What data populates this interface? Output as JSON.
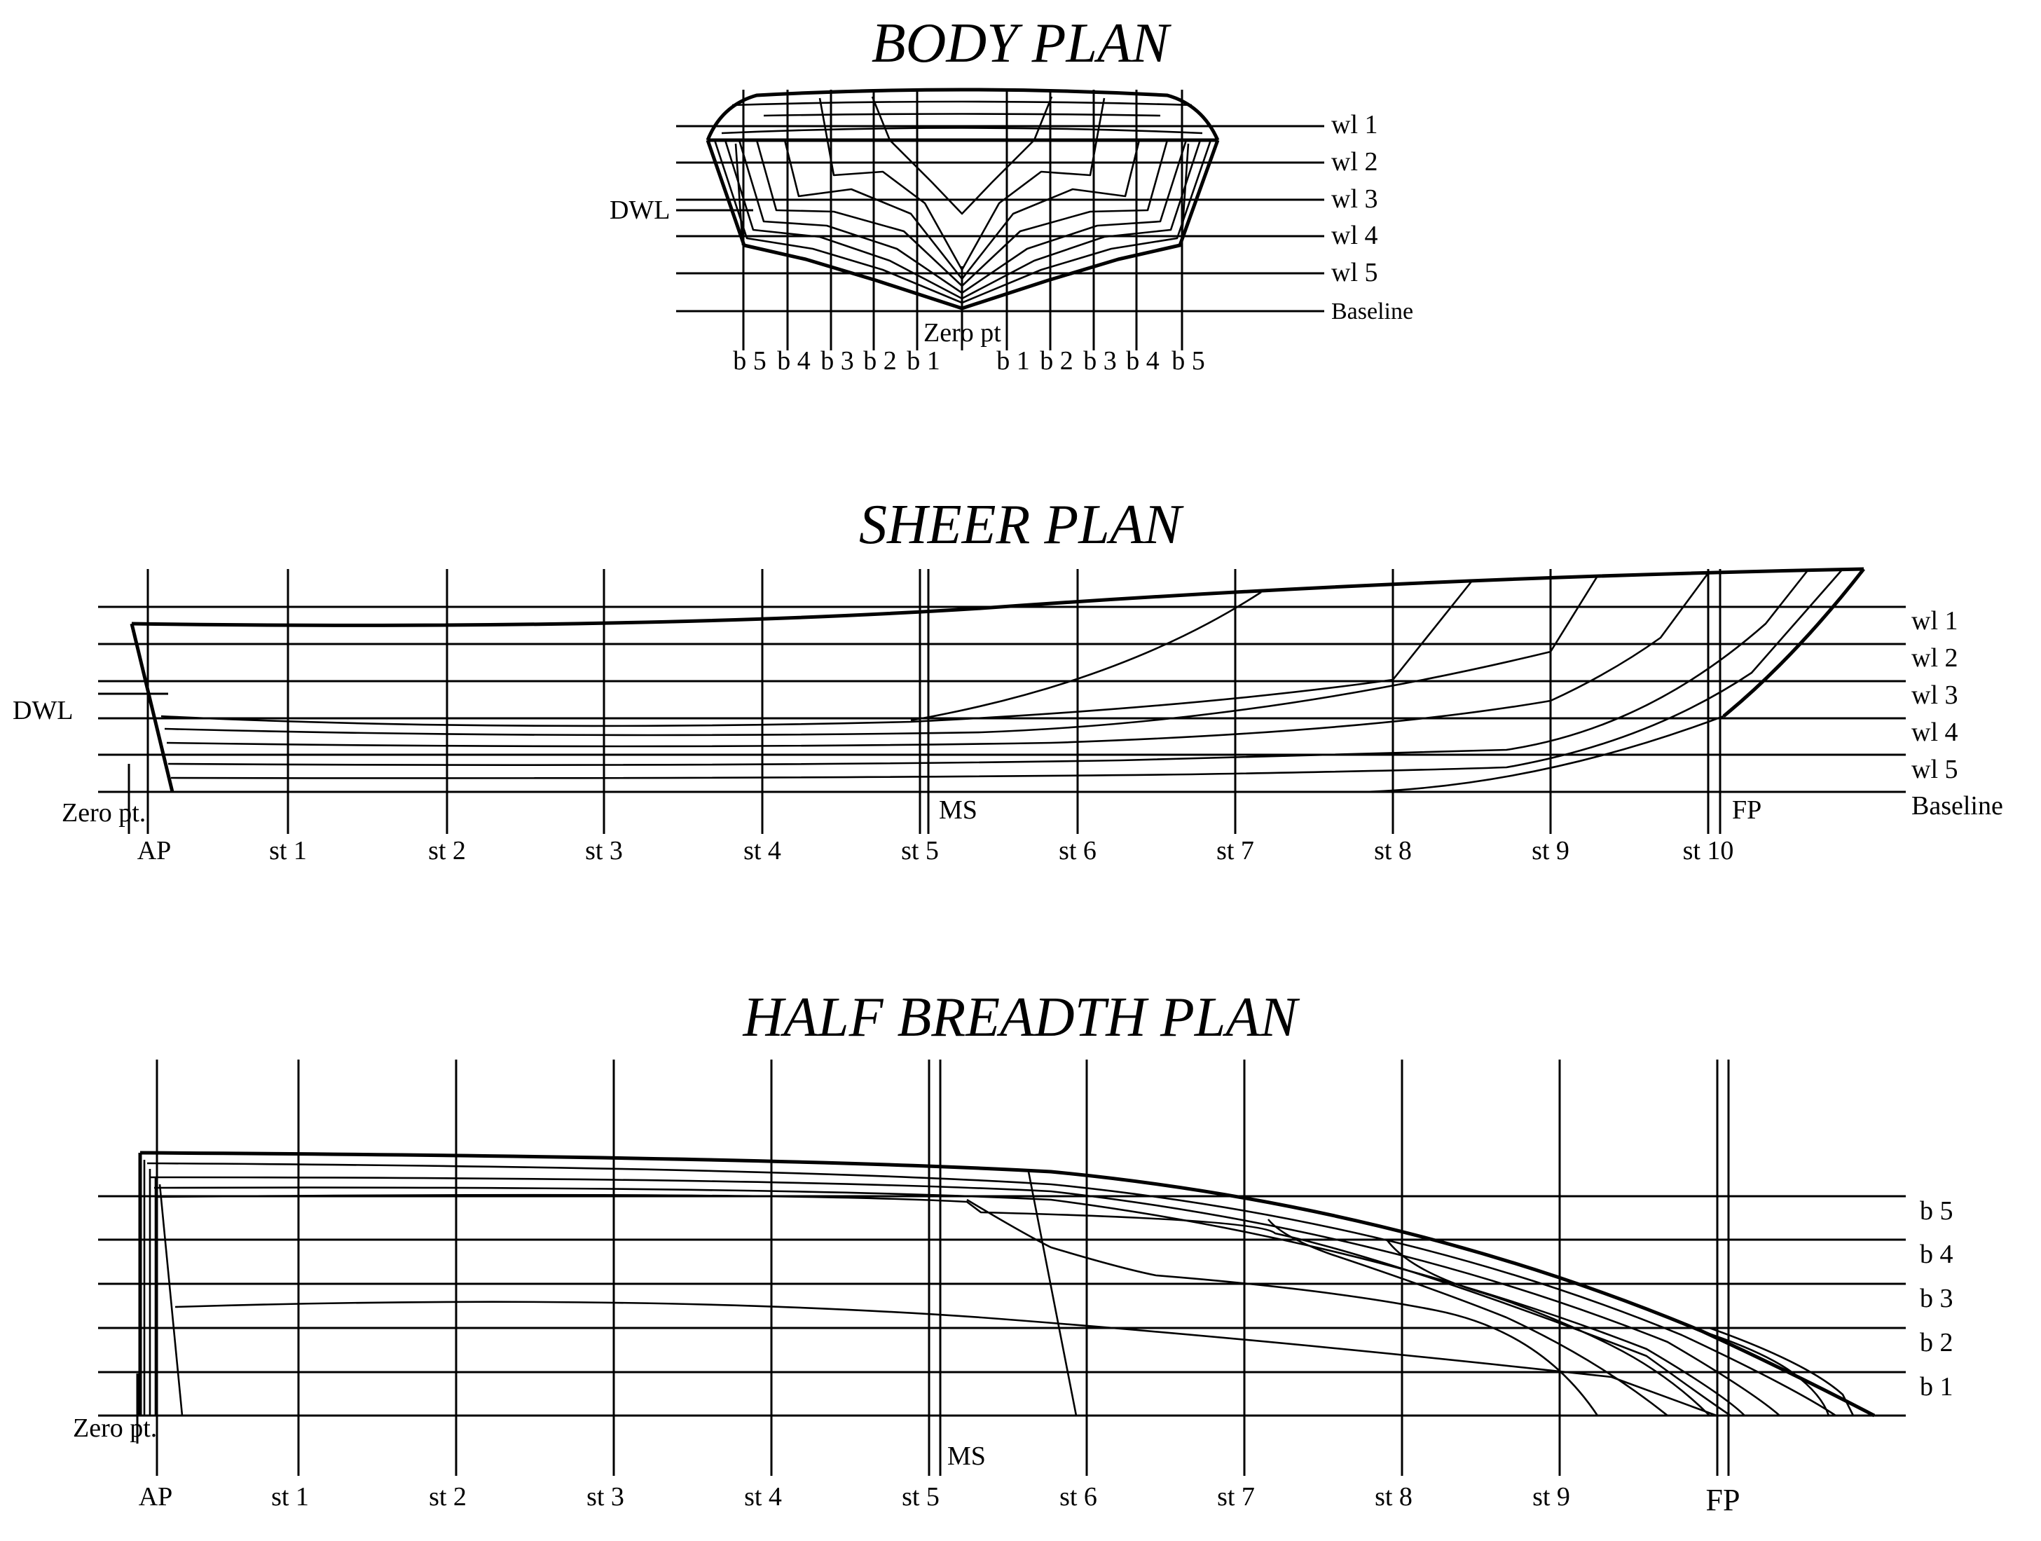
{
  "body_plan": {
    "title": "BODY PLAN",
    "waterlines": [
      "wl 1",
      "wl 2",
      "wl 3",
      "wl 4",
      "wl 5",
      "Baseline"
    ],
    "dwl": "DWL",
    "zero": "Zero pt",
    "buttocks_left": [
      "b 5",
      "b 4",
      "b 3",
      "b 2",
      "b 1"
    ],
    "buttocks_right": [
      "b 1",
      "b 2",
      "b 3",
      "b 4",
      "b 5"
    ]
  },
  "sheer_plan": {
    "title": "SHEER PLAN",
    "waterlines": [
      "wl 1",
      "wl 2",
      "wl 3",
      "wl 4",
      "wl 5",
      "Baseline"
    ],
    "dwl": "DWL",
    "zero": "Zero pt.",
    "ms": "MS",
    "fp": "FP",
    "stations": [
      "AP",
      "st 1",
      "st 2",
      "st 3",
      "st 4",
      "st 5",
      "st 6",
      "st 7",
      "st 8",
      "st 9",
      "st 10"
    ]
  },
  "half_breadth_plan": {
    "title": "HALF BREADTH PLAN",
    "buttocks": [
      "b 5",
      "b 4",
      "b 3",
      "b 2",
      "b 1"
    ],
    "zero": "Zero pt.",
    "ms": "MS",
    "fp": "FP",
    "stations": [
      "AP",
      "st 1",
      "st 2",
      "st 3",
      "st 4",
      "st 5",
      "st 6",
      "st 7",
      "st 8",
      "st 9"
    ]
  }
}
